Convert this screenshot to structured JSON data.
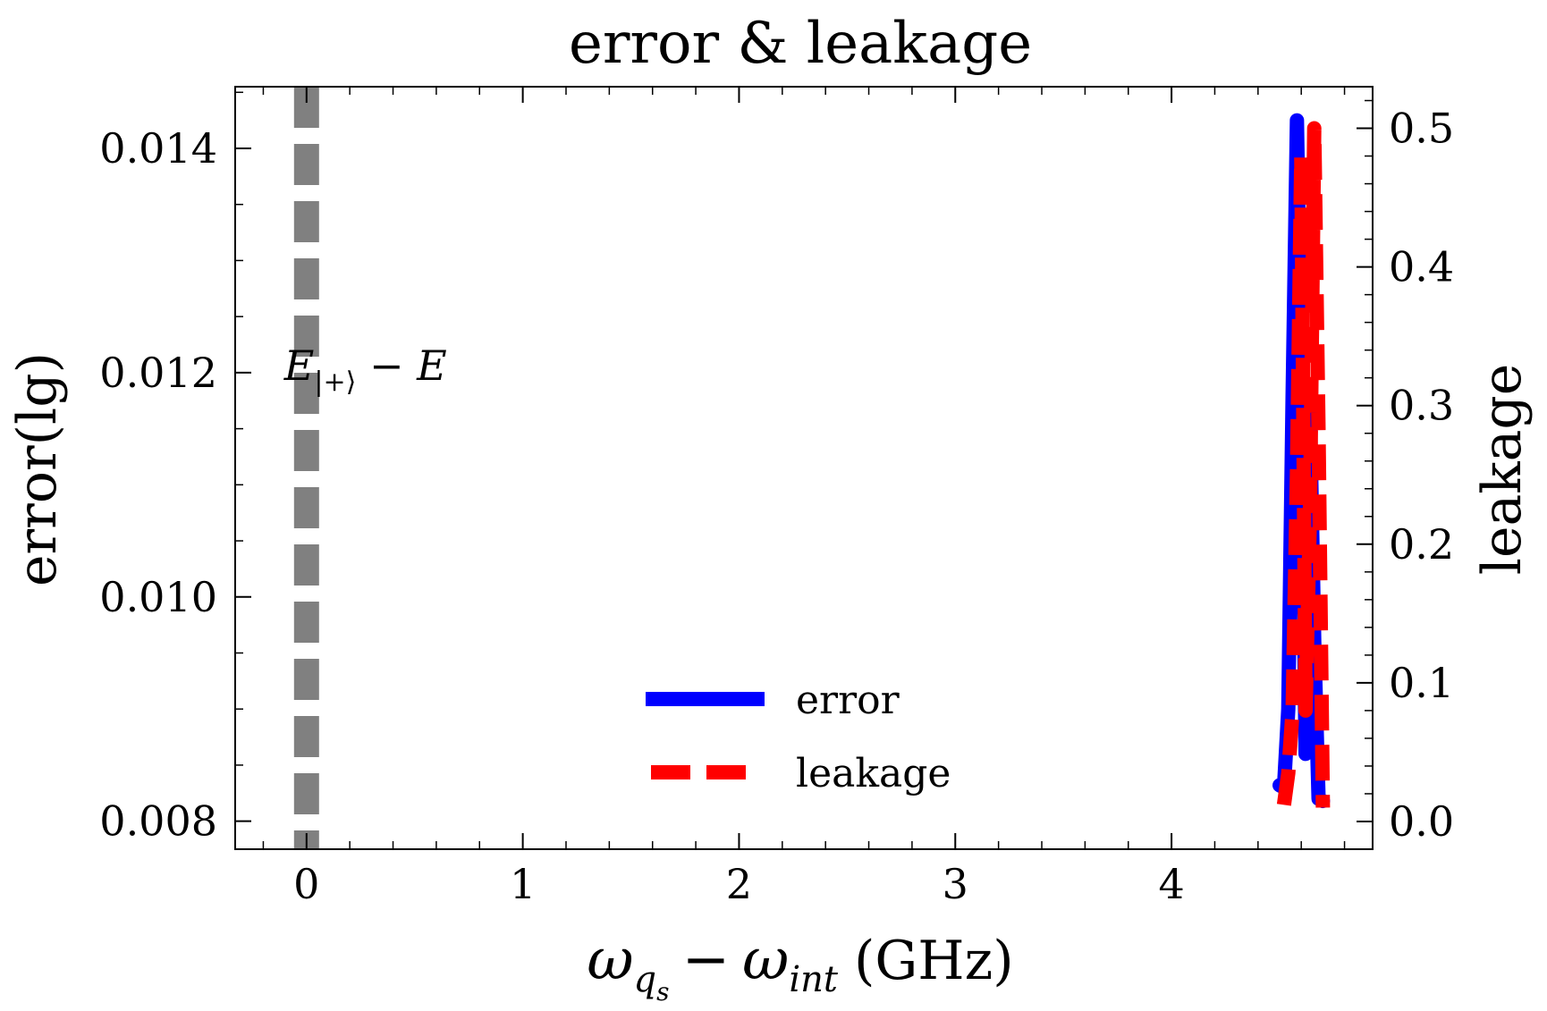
{
  "chart_data": {
    "type": "line",
    "title": "error & leakage",
    "xlabel": "ω_{q_s} − ω_{int} (GHz)",
    "xlabel_parts": {
      "omega1": "ω",
      "sub1": "q",
      "subsub1": "s",
      "minus": "−",
      "omega2": "ω",
      "sub2": "int",
      "unit": "(GHz)"
    },
    "ylabel_left": "error(lg)",
    "ylabel_right": "leakage",
    "xlim": [
      -0.33,
      4.93
    ],
    "ylim_left": [
      0.00775,
      0.01455
    ],
    "ylim_right": [
      -0.02,
      0.53
    ],
    "xticks": [
      0,
      1,
      2,
      3,
      4
    ],
    "xtick_labels": [
      "0",
      "1",
      "2",
      "3",
      "4"
    ],
    "yticks_left": [
      0.008,
      0.01,
      0.012,
      0.014
    ],
    "ytick_labels_left": [
      "0.008",
      "0.010",
      "0.012",
      "0.014"
    ],
    "yticks_right": [
      0.0,
      0.1,
      0.2,
      0.3,
      0.4,
      0.5
    ],
    "ytick_labels_right": [
      "0.0",
      "0.1",
      "0.2",
      "0.3",
      "0.4",
      "0.5"
    ],
    "annotation": {
      "main": "E",
      "subscript": "|+⟩",
      "rest": " − E",
      "x": 0,
      "y": 0.012
    },
    "vertical_line": {
      "x": 0,
      "style": "dashed",
      "color": "#808080"
    },
    "legend": {
      "position": "lower-center"
    },
    "series": [
      {
        "name": "error",
        "axis": "left",
        "color": "#0000ff",
        "style": "solid",
        "x": [
          4.5,
          4.52,
          4.54,
          4.56,
          4.58,
          4.6,
          4.62,
          4.64,
          4.66,
          4.68,
          4.7
        ],
        "y": [
          0.00832,
          0.0083,
          0.009,
          0.0118,
          0.01425,
          0.01185,
          0.0086,
          0.0117,
          0.0096,
          0.0082,
          0.00818
        ]
      },
      {
        "name": "leakage",
        "axis": "right",
        "color": "#ff0000",
        "style": "dashed",
        "x": [
          4.52,
          4.54,
          4.56,
          4.58,
          4.6,
          4.62,
          4.64,
          4.66,
          4.68,
          4.7
        ],
        "y": [
          0.012,
          0.035,
          0.08,
          0.25,
          0.48,
          0.08,
          0.22,
          0.5,
          0.28,
          0.01
        ]
      }
    ]
  }
}
